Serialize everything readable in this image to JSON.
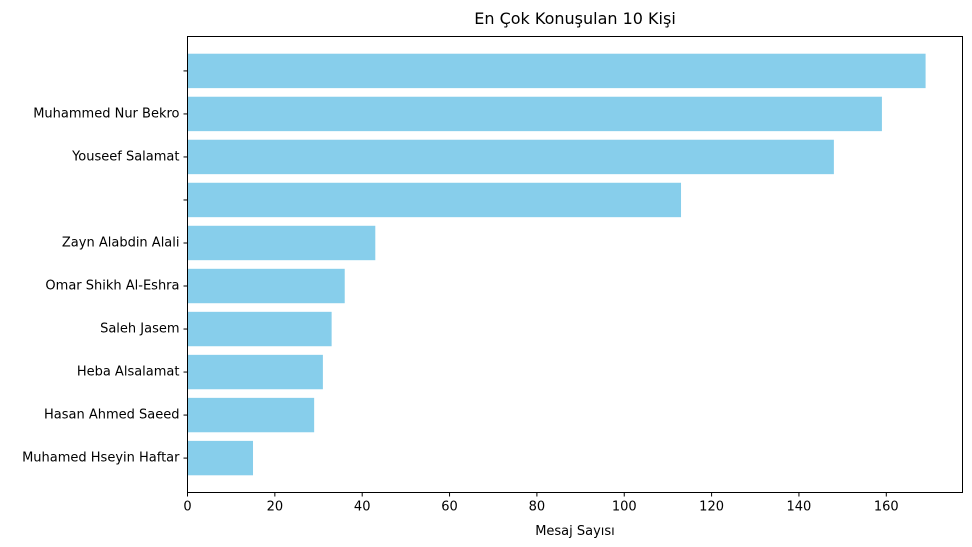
{
  "chart_data": {
    "type": "bar",
    "orientation": "horizontal",
    "title": "En Çok Konuşulan 10 Kişi",
    "xlabel": "Mesaj Sayısı",
    "ylabel": "",
    "categories": [
      "",
      "Muhammed Nur Bekro",
      "Youseef Salamat",
      "",
      "Zayn Alabdin Alali",
      "Omar Shikh Al-Eshra ",
      "Saleh Jasem",
      "Heba Alsalamat",
      "Hasan Ahmed Saeed",
      "Muhamed Hseyin Haftar"
    ],
    "values": [
      169,
      159,
      148,
      113,
      43,
      36,
      33,
      31,
      29,
      15
    ],
    "xlim": [
      0,
      177.45
    ],
    "xticks": [
      0,
      20,
      40,
      60,
      80,
      100,
      120,
      140,
      160
    ],
    "grid": false,
    "legend": "none",
    "bar_color": "#87ceeb"
  }
}
